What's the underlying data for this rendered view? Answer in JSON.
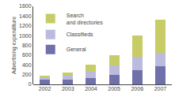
{
  "chart_data": {
    "type": "bar",
    "stacked": true,
    "categories": [
      "2002",
      "2003",
      "2004",
      "2005",
      "2006",
      "2007"
    ],
    "series": [
      {
        "name": "General",
        "color": "#7070aa",
        "values": [
          95,
          100,
          130,
          190,
          295,
          365
        ]
      },
      {
        "name": "Classifieds",
        "color": "#bbbbdd",
        "values": [
          65,
          85,
          130,
          200,
          270,
          285
        ]
      },
      {
        "name": "Search\nand directories",
        "color": "#c8cc66",
        "values": [
          15,
          55,
          140,
          215,
          435,
          680
        ]
      }
    ],
    "ylabel": "Advertising expenditure",
    "ylim": [
      0,
      1600
    ],
    "yticks": [
      0,
      200,
      400,
      600,
      800,
      1000,
      1200,
      1400,
      1600
    ],
    "grid": false,
    "legend": "upper left"
  }
}
